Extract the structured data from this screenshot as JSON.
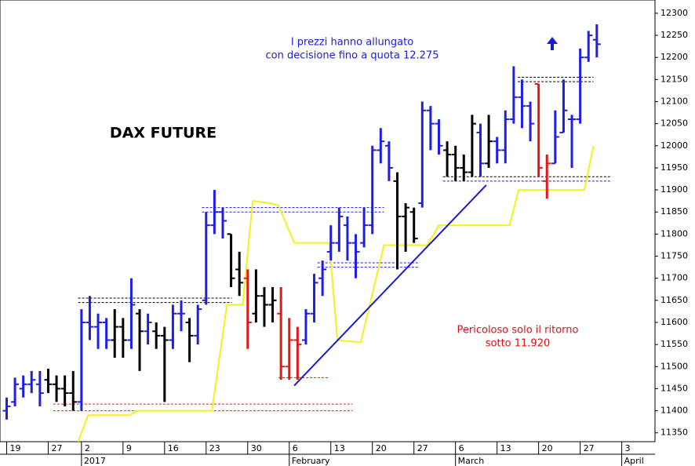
{
  "chart_data": {
    "type": "ohlc",
    "title": "DAX FUTURE",
    "annotations": [
      "I prezzi hanno allungato",
      "con decisione fino a quota 12.275",
      "Pericoloso solo il ritorno",
      "sotto 11.920"
    ],
    "xlim": [
      -0.8,
      78
    ],
    "ylim": [
      11330,
      12330
    ],
    "yticks": [
      11350,
      11400,
      11450,
      11500,
      11550,
      11600,
      11650,
      11700,
      11750,
      11800,
      11850,
      11900,
      11950,
      12000,
      12050,
      12100,
      12150,
      12200,
      12250,
      12300
    ],
    "xticks": [
      {
        "value": 0,
        "label": "19"
      },
      {
        "value": 5,
        "label": "27"
      },
      {
        "value": 9,
        "label": "2"
      },
      {
        "value": 14,
        "label": "9"
      },
      {
        "value": 19,
        "label": "16"
      },
      {
        "value": 24,
        "label": "23"
      },
      {
        "value": 29,
        "label": "30"
      },
      {
        "value": 34,
        "label": "6"
      },
      {
        "value": 39,
        "label": "13"
      },
      {
        "value": 44,
        "label": "20"
      },
      {
        "value": 49,
        "label": "27"
      },
      {
        "value": 54,
        "label": "6"
      },
      {
        "value": 59,
        "label": "13"
      },
      {
        "value": 64,
        "label": "20"
      },
      {
        "value": 69,
        "label": "27"
      },
      {
        "value": 74,
        "label": "3"
      }
    ],
    "month_ticks": [
      {
        "value": 9,
        "label": "2017"
      },
      {
        "value": 34,
        "label": "February"
      },
      {
        "value": 54,
        "label": "March"
      },
      {
        "value": 74,
        "label": "April"
      }
    ],
    "series": [
      {
        "color": "#1e1ee6",
        "x": [
          0,
          1,
          2,
          3,
          4,
          9,
          10,
          11,
          12,
          15,
          17,
          20,
          21,
          23,
          24,
          25,
          26,
          36,
          37,
          38,
          39,
          40,
          41,
          42,
          43,
          44,
          45,
          46,
          50,
          51,
          52,
          57,
          59,
          60,
          61,
          62,
          63,
          66,
          67,
          68,
          69,
          70,
          71
        ],
        "open": [
          11400,
          11420,
          11450,
          11460,
          11460,
          11420,
          11600,
          11590,
          11600,
          11560,
          11580,
          11560,
          11620,
          11570,
          11650,
          11820,
          11850,
          11560,
          11620,
          11700,
          11760,
          11780,
          11820,
          11780,
          11780,
          11820,
          11990,
          12000,
          11870,
          12080,
          12050,
          12030,
          12010,
          11990,
          12060,
          12110,
          12090,
          11960,
          12030,
          12060,
          12060,
          12200,
          12240
        ],
        "high": [
          11430,
          11475,
          11480,
          11490,
          11490,
          11630,
          11660,
          11620,
          11610,
          11700,
          11620,
          11640,
          11650,
          11640,
          11850,
          11900,
          11860,
          11630,
          11710,
          11740,
          11820,
          11860,
          11840,
          11800,
          11860,
          12000,
          12040,
          12010,
          12100,
          12090,
          12060,
          12050,
          12020,
          12080,
          12180,
          12150,
          12100,
          12080,
          12150,
          12070,
          12220,
          12260,
          12275
        ],
        "low": [
          11380,
          11410,
          11430,
          11440,
          11410,
          11400,
          11560,
          11540,
          11540,
          11540,
          11550,
          11540,
          11580,
          11550,
          11640,
          11800,
          11790,
          11550,
          11600,
          11660,
          11740,
          11760,
          11740,
          11700,
          11770,
          11800,
          11960,
          11920,
          11860,
          11990,
          11980,
          11930,
          11960,
          11960,
          12050,
          12040,
          12010,
          11960,
          12030,
          11950,
          12050,
          12190,
          12200
        ],
        "close": [
          11410,
          11460,
          11460,
          11470,
          11440,
          11600,
          11590,
          11600,
          11560,
          11640,
          11600,
          11620,
          11620,
          11630,
          11820,
          11850,
          11830,
          11620,
          11690,
          11720,
          11780,
          11840,
          11780,
          11760,
          11820,
          11990,
          12010,
          11950,
          12080,
          12050,
          12000,
          11960,
          11990,
          12060,
          12110,
          12090,
          12050,
          12020,
          12080,
          12060,
          12200,
          12250,
          12230
        ]
      },
      {
        "color": "#000000",
        "x": [
          5,
          6,
          7,
          8,
          13,
          14,
          16,
          18,
          19,
          22,
          27,
          28,
          30,
          31,
          32,
          47,
          48,
          49,
          53,
          54,
          55,
          56,
          58
        ],
        "open": [
          11470,
          11460,
          11450,
          11440,
          11560,
          11590,
          11620,
          11580,
          11570,
          11600,
          11800,
          11720,
          11620,
          11660,
          11640,
          11920,
          11840,
          11850,
          11990,
          11980,
          11950,
          11940,
          11960
        ],
        "high": [
          11495,
          11480,
          11480,
          11490,
          11630,
          11610,
          11630,
          11600,
          11590,
          11610,
          11800,
          11760,
          11720,
          11680,
          11680,
          11940,
          11870,
          11860,
          12010,
          12000,
          11980,
          12070,
          12070
        ],
        "low": [
          11440,
          11420,
          11410,
          11400,
          11520,
          11520,
          11490,
          11540,
          11420,
          11510,
          11680,
          11660,
          11600,
          11590,
          11600,
          11720,
          11760,
          11780,
          11930,
          11920,
          11920,
          11930,
          11950
        ],
        "close": [
          11460,
          11450,
          11440,
          11420,
          11590,
          11560,
          11580,
          11570,
          11560,
          11570,
          11700,
          11690,
          11660,
          11640,
          11650,
          11840,
          11860,
          11790,
          11980,
          11950,
          11940,
          12050,
          12010
        ]
      },
      {
        "color": "#e01818",
        "x": [
          29,
          33,
          34,
          35,
          64,
          65
        ],
        "open": [
          11700,
          11620,
          11500,
          11560,
          12140,
          11920
        ],
        "high": [
          11720,
          11680,
          11610,
          11590,
          12140,
          11980
        ],
        "low": [
          11540,
          11470,
          11470,
          11470,
          11930,
          11880
        ],
        "close": [
          11600,
          11500,
          11560,
          11550,
          11950,
          11960
        ]
      }
    ],
    "stop_line": {
      "color": "#f2f21a",
      "x": [
        8.6,
        9.8,
        14.8,
        15.7,
        24.7,
        26.5,
        28.4,
        29.6,
        31.7,
        32.7,
        34.6,
        38.8,
        39.8,
        42.6,
        45.4,
        50.6,
        52,
        60.5,
        61.6,
        69.5,
        70.6
      ],
      "values": [
        11330,
        11390,
        11390,
        11400,
        11400,
        11640,
        11640,
        11875,
        11870,
        11865,
        11780,
        11780,
        11560,
        11555,
        11775,
        11775,
        11820,
        11820,
        11900,
        11900,
        12000
      ]
    },
    "trendline": {
      "color": "#1a1acc",
      "x": [
        34.6,
        57.7
      ],
      "values": [
        11457,
        11911
      ]
    },
    "levels": [
      {
        "value": 11655,
        "color": "#000000",
        "x": [
          8.6,
          27.1
        ]
      },
      {
        "value": 11645,
        "color": "#000000",
        "x": [
          8.6,
          27.1
        ]
      },
      {
        "value": 11415,
        "color": "#e01818",
        "x": [
          5.6,
          41.6
        ]
      },
      {
        "value": 11400,
        "color": "#e01818",
        "x": [
          5.6,
          41.6
        ]
      },
      {
        "value": 11860,
        "color": "#1e1ee6",
        "x": [
          23.5,
          45.4
        ]
      },
      {
        "value": 11850,
        "color": "#1e1ee6",
        "x": [
          23.5,
          45.4
        ]
      },
      {
        "value": 11735,
        "color": "#1e1ee6",
        "x": [
          37.4,
          49.7
        ]
      },
      {
        "value": 11725,
        "color": "#1e1ee6",
        "x": [
          37.4,
          49.7
        ]
      },
      {
        "value": 11930,
        "color": "#000000",
        "x": [
          52.5,
          72.8
        ]
      },
      {
        "value": 11920,
        "color": "#1e1ee6",
        "x": [
          52.5,
          72.8
        ]
      },
      {
        "value": 12155,
        "color": "#000000",
        "x": [
          61.5,
          70.6
        ]
      },
      {
        "value": 12145,
        "color": "#000000",
        "x": [
          61.5,
          70.6
        ]
      },
      {
        "value": 11475,
        "color": "#e01818",
        "x": [
          32.7,
          38.8
        ]
      }
    ]
  }
}
